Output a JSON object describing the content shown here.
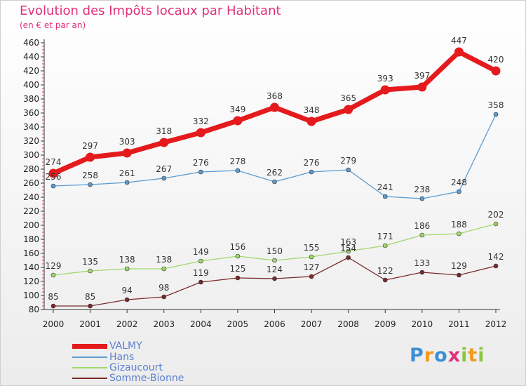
{
  "header": {
    "title": "Evolution des Impôts locaux par Habitant",
    "subtitle": "(en € et par an)"
  },
  "brand": {
    "logo_text": "Proxiti"
  },
  "chart_data": {
    "type": "line",
    "title": "Evolution des Impôts locaux par Habitant",
    "subtitle": "(en € et par an)",
    "xlabel": "",
    "ylabel": "",
    "x": [
      "2000",
      "2001",
      "2002",
      "2003",
      "2004",
      "2005",
      "2006",
      "2007",
      "2008",
      "2009",
      "2010",
      "2011",
      "2012"
    ],
    "ylim": [
      80,
      460
    ],
    "yticks": [
      80,
      100,
      120,
      140,
      160,
      180,
      200,
      220,
      240,
      260,
      280,
      300,
      320,
      340,
      360,
      380,
      400,
      420,
      440,
      460
    ],
    "grid": false,
    "legend_position": "bottom-left",
    "series": [
      {
        "name": "VALMY",
        "color": "#e41a1c",
        "values": [
          274,
          297,
          303,
          318,
          332,
          349,
          368,
          348,
          365,
          393,
          397,
          447,
          420
        ]
      },
      {
        "name": "Hans",
        "color": "#5a9bd0",
        "values": [
          256,
          258,
          261,
          267,
          276,
          278,
          262,
          276,
          279,
          241,
          238,
          248,
          358
        ]
      },
      {
        "name": "Gizaucourt",
        "color": "#a0d86a",
        "values": [
          129,
          135,
          138,
          138,
          149,
          156,
          150,
          155,
          163,
          171,
          186,
          188,
          202
        ]
      },
      {
        "name": "Somme-Bionne",
        "color": "#7a2a2a",
        "values": [
          85,
          85,
          94,
          98,
          119,
          125,
          124,
          127,
          154,
          122,
          133,
          129,
          142
        ]
      }
    ]
  }
}
